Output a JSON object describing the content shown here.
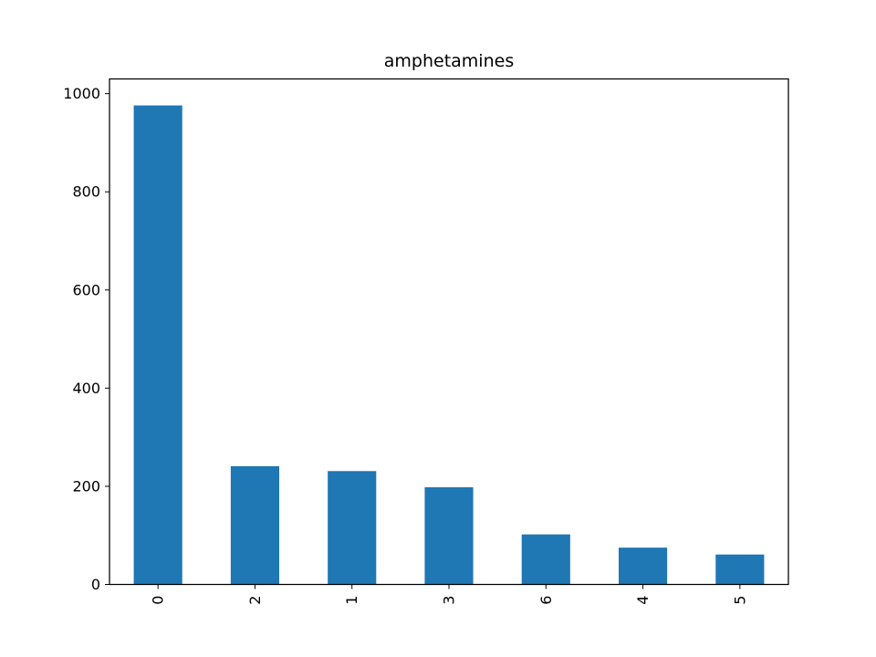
{
  "chart_data": {
    "type": "bar",
    "title": "amphetamines",
    "xlabel": "",
    "ylabel": "",
    "categories": [
      "0",
      "2",
      "1",
      "3",
      "6",
      "4",
      "5"
    ],
    "values": [
      976,
      241,
      231,
      198,
      102,
      75,
      61
    ],
    "ylim": [
      0,
      1030
    ],
    "yticks": [
      0,
      200,
      400,
      600,
      800,
      1000
    ],
    "x_tick_rotation": "vertical",
    "grid": false,
    "legend": "none",
    "bar_color": "#1f77b4"
  }
}
